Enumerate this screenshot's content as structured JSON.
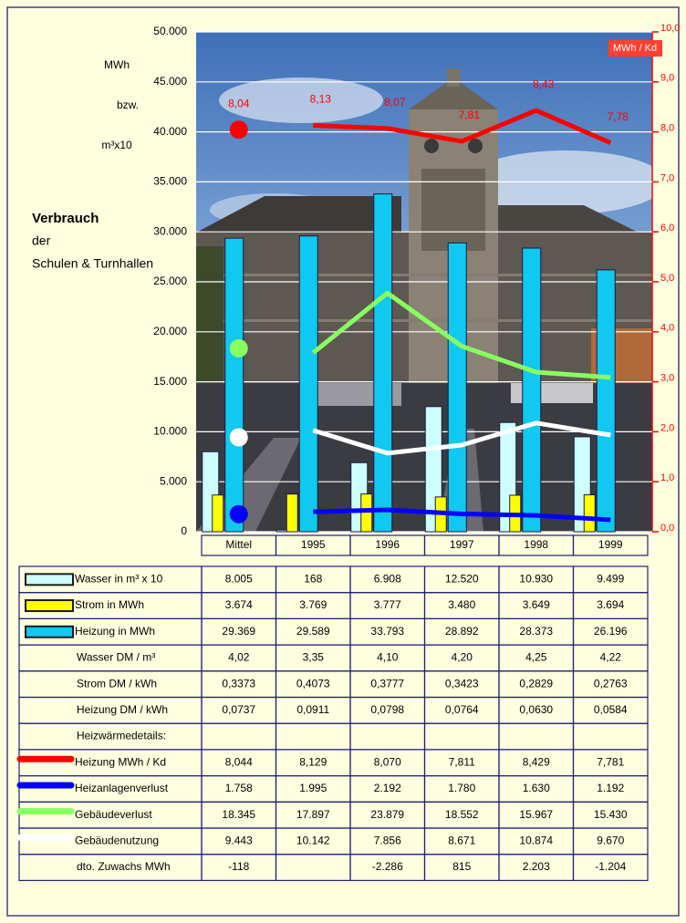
{
  "chart_data": {
    "type": "bar",
    "title_lines": [
      "Verbrauch",
      "der",
      "Schulen & Turnhallen"
    ],
    "ylabel_lines": [
      "MWh",
      "bzw.",
      "m³x10"
    ],
    "y2label": "MWh / Kd",
    "categories": [
      "Mittel",
      "1995",
      "1996",
      "1997",
      "1998",
      "1999"
    ],
    "ylim": [
      0,
      50000
    ],
    "yticks": [
      0,
      {
        "value": 5000,
        "label": "5.000"
      },
      {
        "value": 10000,
        "label": "10.000"
      },
      {
        "value": 15000,
        "label": "15.000"
      },
      {
        "value": 20000,
        "label": "20.000"
      },
      {
        "value": 25000,
        "label": "25.000"
      },
      {
        "value": 30000,
        "label": "30.000"
      },
      {
        "value": 35000,
        "label": "35.000"
      },
      {
        "value": 40000,
        "label": "40.000"
      },
      {
        "value": 45000,
        "label": "45.000"
      },
      {
        "value": 50000,
        "label": "50.000"
      }
    ],
    "y2lim": [
      0,
      10
    ],
    "y2ticks": [
      {
        "value": 0,
        "label": "0,0"
      },
      {
        "value": 1,
        "label": "1,0"
      },
      {
        "value": 2,
        "label": "2,0"
      },
      {
        "value": 3,
        "label": "3,0"
      },
      {
        "value": 4,
        "label": "4,0"
      },
      {
        "value": 5,
        "label": "5,0"
      },
      {
        "value": 6,
        "label": "6,0"
      },
      {
        "value": 7,
        "label": "7,0"
      },
      {
        "value": 8,
        "label": "8,0"
      },
      {
        "value": 9,
        "label": "9,0"
      },
      {
        "value": 10,
        "label": "10,0"
      }
    ],
    "grid": true,
    "series": [
      {
        "name": "Wasser in m³ x 10",
        "type": "bar",
        "color": "#ccffff",
        "values": [
          8005,
          168,
          6908,
          12520,
          10930,
          9499
        ],
        "value_labels": [
          "8.005",
          "168",
          "6.908",
          "12.520",
          "10.930",
          "9.499"
        ]
      },
      {
        "name": "Strom in MWh",
        "type": "bar",
        "color": "#ffff00",
        "values": [
          3674,
          3769,
          3777,
          3480,
          3649,
          3694
        ],
        "value_labels": [
          "3.674",
          "3.769",
          "3.777",
          "3.480",
          "3.649",
          "3.694"
        ]
      },
      {
        "name": "Heizung in MWh",
        "type": "bar",
        "color": "#10c8f0",
        "values": [
          29369,
          29589,
          33793,
          28892,
          28373,
          26196
        ],
        "value_labels": [
          "29.369",
          "29.589",
          "33.793",
          "28.892",
          "28.373",
          "26.196"
        ]
      },
      {
        "name": "Heizung MWh / Kd",
        "type": "line",
        "axis": "y2",
        "color": "#ff0000",
        "values": [
          8.044,
          8.129,
          8.07,
          7.811,
          8.429,
          7.781
        ],
        "value_labels": [
          "8,044",
          "8,129",
          "8,070",
          "7,811",
          "8,429",
          "7,781"
        ],
        "data_labels": [
          "8,04",
          "8,13",
          "8,07",
          "7,81",
          "8,43",
          "7,78"
        ]
      },
      {
        "name": "Heizanlagenverlust",
        "type": "line",
        "color": "#0000ff",
        "values": [
          1758,
          1995,
          2192,
          1780,
          1630,
          1192
        ],
        "value_labels": [
          "1.758",
          "1.995",
          "2.192",
          "1.780",
          "1.630",
          "1.192"
        ]
      },
      {
        "name": "Gebäudeverlust",
        "type": "line",
        "color": "#88ff60",
        "values": [
          18345,
          17897,
          23879,
          18552,
          15967,
          15430
        ],
        "value_labels": [
          "18.345",
          "17.897",
          "23.879",
          "18.552",
          "15.967",
          "15.430"
        ]
      },
      {
        "name": "Gebäudenutzung",
        "type": "line",
        "color": "#ffffff",
        "values": [
          9443,
          10142,
          7856,
          8671,
          10874,
          9670
        ],
        "value_labels": [
          "9.443",
          "10.142",
          "7.856",
          "8.671",
          "10.874",
          "9.670"
        ]
      }
    ]
  },
  "table": {
    "price_rows": [
      {
        "label": "Wasser DM / m³",
        "cells": [
          "4,02",
          "3,35",
          "4,10",
          "4,20",
          "4,25",
          "4,22"
        ]
      },
      {
        "label": "Strom DM / kWh",
        "cells": [
          "0,3373",
          "0,4073",
          "0,3777",
          "0,3423",
          "0,2829",
          "0,2763"
        ]
      },
      {
        "label": "Heizung DM / kWh",
        "cells": [
          "0,0737",
          "0,0911",
          "0,0798",
          "0,0764",
          "0,0630",
          "0,0584"
        ]
      }
    ],
    "section_label": "Heizwärmedetails:",
    "extra_rows": [
      {
        "label": "dto. Zuwachs MWh",
        "cells": [
          "-118",
          null,
          "-2.286",
          "815",
          "2.203",
          "-1.204"
        ]
      }
    ]
  }
}
